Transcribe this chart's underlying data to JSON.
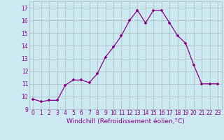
{
  "x": [
    0,
    1,
    2,
    3,
    4,
    5,
    6,
    7,
    8,
    9,
    10,
    11,
    12,
    13,
    14,
    15,
    16,
    17,
    18,
    19,
    20,
    21,
    22,
    23
  ],
  "y": [
    9.8,
    9.6,
    9.7,
    9.7,
    10.9,
    11.3,
    11.3,
    11.1,
    11.8,
    13.1,
    13.9,
    14.8,
    16.0,
    16.8,
    15.8,
    16.8,
    16.8,
    15.8,
    14.8,
    14.2,
    12.5,
    11.0,
    11.0,
    11.0
  ],
  "line_color": "#880088",
  "marker": "+",
  "bg_color": "#cce8f0",
  "grid_color": "#aabbbb",
  "xlabel": "Windchill (Refroidissement éolien,°C)",
  "ylim": [
    9,
    17.5
  ],
  "xlim": [
    -0.5,
    23.5
  ],
  "yticks": [
    9,
    10,
    11,
    12,
    13,
    14,
    15,
    16,
    17
  ],
  "xticks": [
    0,
    1,
    2,
    3,
    4,
    5,
    6,
    7,
    8,
    9,
    10,
    11,
    12,
    13,
    14,
    15,
    16,
    17,
    18,
    19,
    20,
    21,
    22,
    23
  ],
  "tick_fontsize": 5.5,
  "xlabel_fontsize": 6.5
}
